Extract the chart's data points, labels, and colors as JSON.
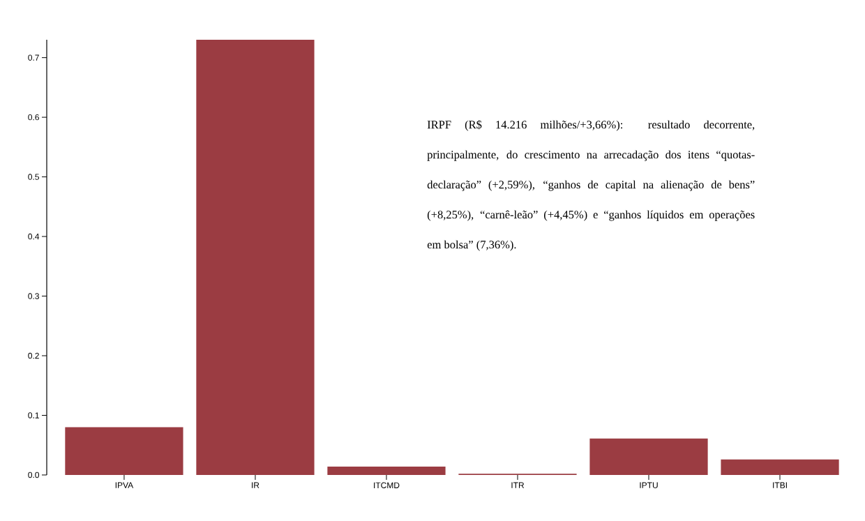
{
  "chart_data": {
    "type": "bar",
    "categories": [
      "IPVA",
      "IR",
      "ITCMD",
      "ITR",
      "IPTU",
      "ITBI"
    ],
    "values": [
      0.08,
      0.73,
      0.014,
      0.002,
      0.061,
      0.026
    ],
    "color": "#9b3c42",
    "ylim": [
      0,
      0.73
    ],
    "yticks": [
      {
        "value": 0,
        "label": "0.0"
      },
      0.1,
      0.2,
      0.3,
      0.4,
      0.5,
      0.6,
      0.7
    ],
    "grid": false,
    "annotations": [
      "IRPF (R$ 14.216 milhões/+3,66%): resultado decorrente, principalmente, do crescimento na arrecadação dos itens “quotas-declaração” (+2,59%), “ganhos de capital na alienação de bens” (+8,25%), “carnê-leão” (+4,45%) e “ganhos líquidos em operações em bolsa” (7,36%)."
    ]
  }
}
